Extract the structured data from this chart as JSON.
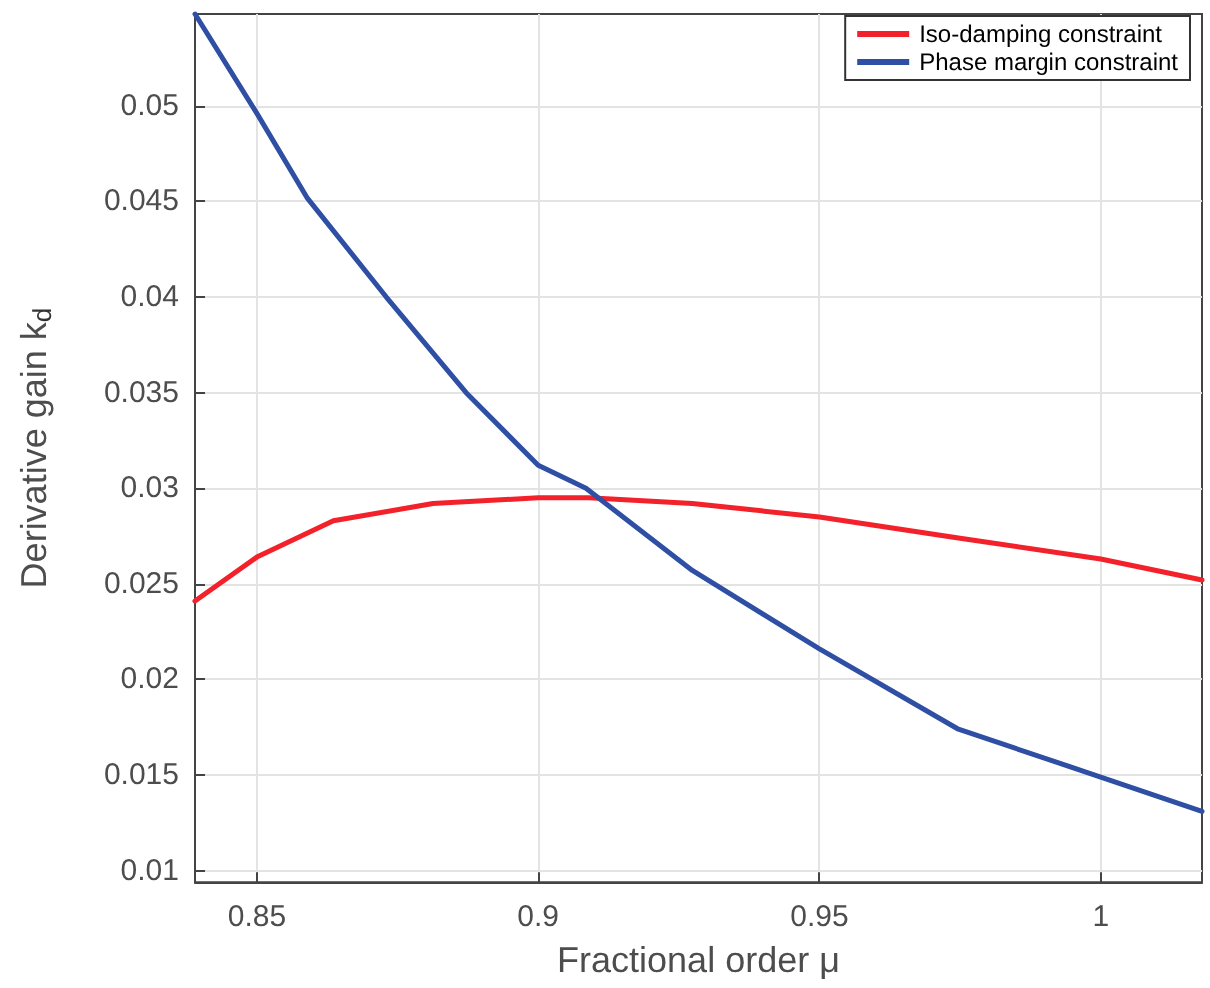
{
  "chart_data": {
    "type": "line",
    "xlabel": "Fractional order μ",
    "ylabel": "Derivative gain k$_{d}$",
    "xlim": [
      0.839,
      1.018
    ],
    "ylim": [
      0.0094,
      0.0548
    ],
    "xticks": [
      0.85,
      0.9,
      0.95,
      1
    ],
    "yticks": [
      0.01,
      0.015,
      0.02,
      0.025,
      0.03,
      0.035,
      0.04,
      0.045,
      0.05
    ],
    "grid": true,
    "legend": "top right",
    "marker": "none",
    "line_style": "solid",
    "series": [
      {
        "name": "Iso-damping constraint",
        "color": "#f2212a",
        "x": [
          0.839,
          0.85,
          0.8636,
          0.8813,
          0.9,
          0.909,
          0.9274,
          0.95,
          0.9747,
          1.0,
          1.018
        ],
        "values": [
          0.0241,
          0.0264,
          0.0283,
          0.0292,
          0.0295,
          0.0295,
          0.0292,
          0.0285,
          0.0274,
          0.0263,
          0.0252
        ]
      },
      {
        "name": "Phase margin constraint",
        "color": "#2e4fa3",
        "x": [
          0.839,
          0.85,
          0.8589,
          0.873,
          0.8872,
          0.9,
          0.9085,
          0.9274,
          0.95,
          0.9747,
          1.0,
          1.018
        ],
        "values": [
          0.0548,
          0.0496,
          0.0452,
          0.04,
          0.035,
          0.0312,
          0.03,
          0.0257,
          0.0216,
          0.0174,
          0.0149,
          0.0131
        ]
      }
    ]
  }
}
